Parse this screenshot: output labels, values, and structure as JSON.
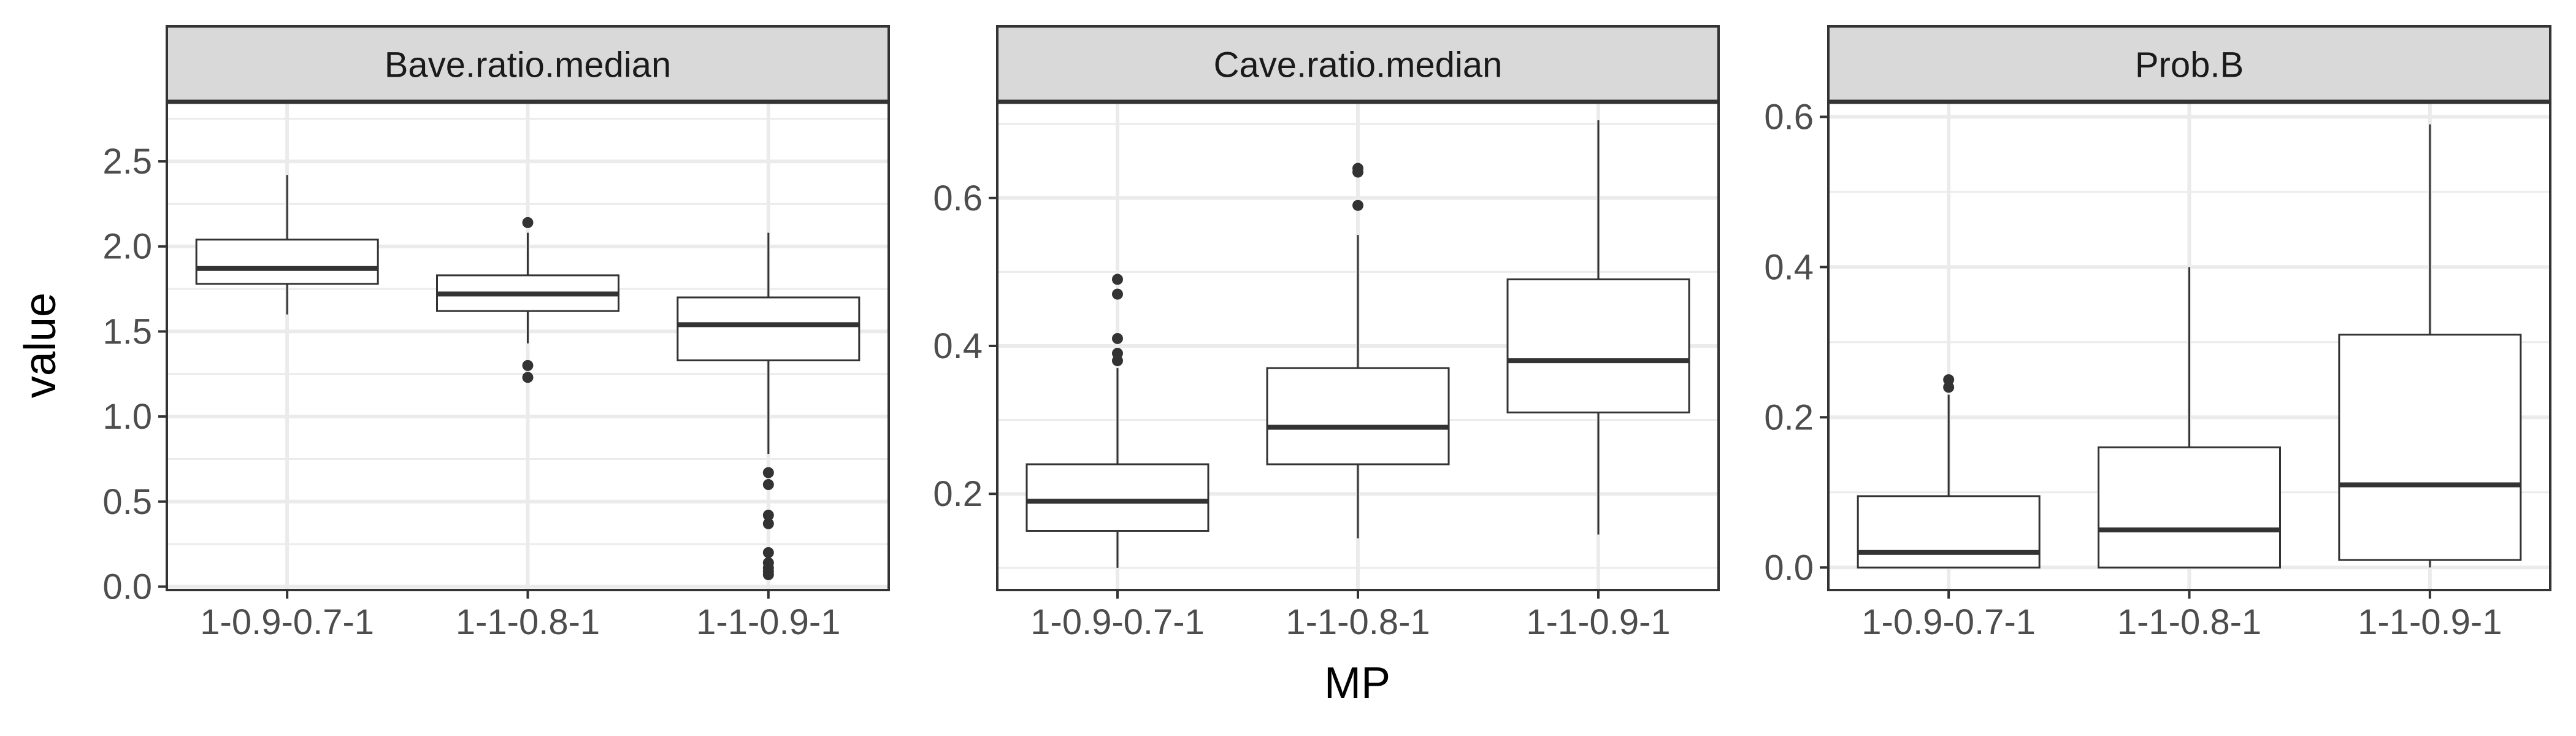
{
  "chart_data": {
    "type": "boxplot",
    "facet_layout": "1 row x 3 columns, free y scales",
    "xlabel": "MP",
    "ylabel": "value",
    "categories": [
      "1-0.9-0.7-1",
      "1-1-0.8-1",
      "1-1-0.9-1"
    ],
    "grid": true,
    "colors": {
      "strip_fill": "#d9d9d9",
      "frame": "#333333",
      "grid": "#ebebeb",
      "box": "#333333"
    },
    "facets": [
      {
        "name": "Bave.ratio.median",
        "ylim": [
          -0.02,
          2.85
        ],
        "yticks": [
          0.0,
          0.5,
          1.0,
          1.5,
          2.0,
          2.5
        ],
        "ytick_labels": [
          "0.0",
          "0.5",
          "1.0",
          "1.5",
          "2.0",
          "2.5"
        ],
        "boxes": [
          {
            "category": "1-0.9-0.7-1",
            "whisker_low": 1.6,
            "q1": 1.78,
            "median": 1.87,
            "q3": 2.04,
            "whisker_high": 2.42,
            "outliers": []
          },
          {
            "category": "1-1-0.8-1",
            "whisker_low": 1.43,
            "q1": 1.62,
            "median": 1.72,
            "q3": 1.83,
            "whisker_high": 2.08,
            "outliers": [
              2.14,
              1.3,
              1.23
            ]
          },
          {
            "category": "1-1-0.9-1",
            "whisker_low": 0.78,
            "q1": 1.33,
            "median": 1.54,
            "q3": 1.7,
            "whisker_high": 2.08,
            "outliers": [
              0.67,
              0.6,
              0.42,
              0.37,
              0.2,
              0.14,
              0.11,
              0.09,
              0.07
            ]
          }
        ]
      },
      {
        "name": "Cave.ratio.median",
        "ylim": [
          0.07,
          0.73
        ],
        "yticks": [
          0.2,
          0.4,
          0.6
        ],
        "ytick_labels": [
          "0.2",
          "0.4",
          "0.6"
        ],
        "boxes": [
          {
            "category": "1-0.9-0.7-1",
            "whisker_low": 0.1,
            "q1": 0.15,
            "median": 0.19,
            "q3": 0.24,
            "whisker_high": 0.37,
            "outliers": [
              0.49,
              0.47,
              0.41,
              0.39,
              0.38
            ]
          },
          {
            "category": "1-1-0.8-1",
            "whisker_low": 0.14,
            "q1": 0.24,
            "median": 0.29,
            "q3": 0.37,
            "whisker_high": 0.55,
            "outliers": [
              0.64,
              0.635,
              0.59
            ]
          },
          {
            "category": "1-1-0.9-1",
            "whisker_low": 0.145,
            "q1": 0.31,
            "median": 0.38,
            "q3": 0.49,
            "whisker_high": 0.705,
            "outliers": []
          }
        ]
      },
      {
        "name": "Prob.B",
        "ylim": [
          -0.03,
          0.62
        ],
        "yticks": [
          0.0,
          0.2,
          0.4,
          0.6
        ],
        "ytick_labels": [
          "0.0",
          "0.2",
          "0.4",
          "0.6"
        ],
        "boxes": [
          {
            "category": "1-0.9-0.7-1",
            "whisker_low": 0.0,
            "q1": 0.0,
            "median": 0.02,
            "q3": 0.095,
            "whisker_high": 0.23,
            "outliers": [
              0.25,
              0.24
            ]
          },
          {
            "category": "1-1-0.8-1",
            "whisker_low": 0.0,
            "q1": 0.0,
            "median": 0.05,
            "q3": 0.16,
            "whisker_high": 0.4,
            "outliers": []
          },
          {
            "category": "1-1-0.9-1",
            "whisker_low": 0.0,
            "q1": 0.01,
            "median": 0.11,
            "q3": 0.31,
            "whisker_high": 0.59,
            "outliers": []
          }
        ]
      }
    ]
  }
}
